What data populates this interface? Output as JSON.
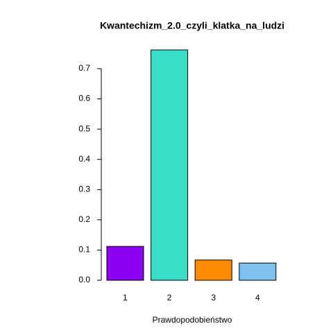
{
  "chart_data": {
    "type": "bar",
    "title": "Kwantechizm_2.0_czyli_klatka_na_ludzi",
    "x_label": "Prawdopodobieństwo",
    "categories": [
      "1",
      "2",
      "3",
      "4"
    ],
    "values": [
      0.112,
      0.762,
      0.067,
      0.057
    ],
    "colors": [
      "#8B00EE",
      "#3ADDC6",
      "#FF8C00",
      "#7EC0EE"
    ],
    "ylim": [
      0,
      0.8
    ],
    "yticks": [
      {
        "value": 0,
        "label": "0.0"
      },
      0.1,
      0.2,
      0.3,
      0.4,
      0.5,
      0.6,
      0.7
    ],
    "grid": false
  }
}
